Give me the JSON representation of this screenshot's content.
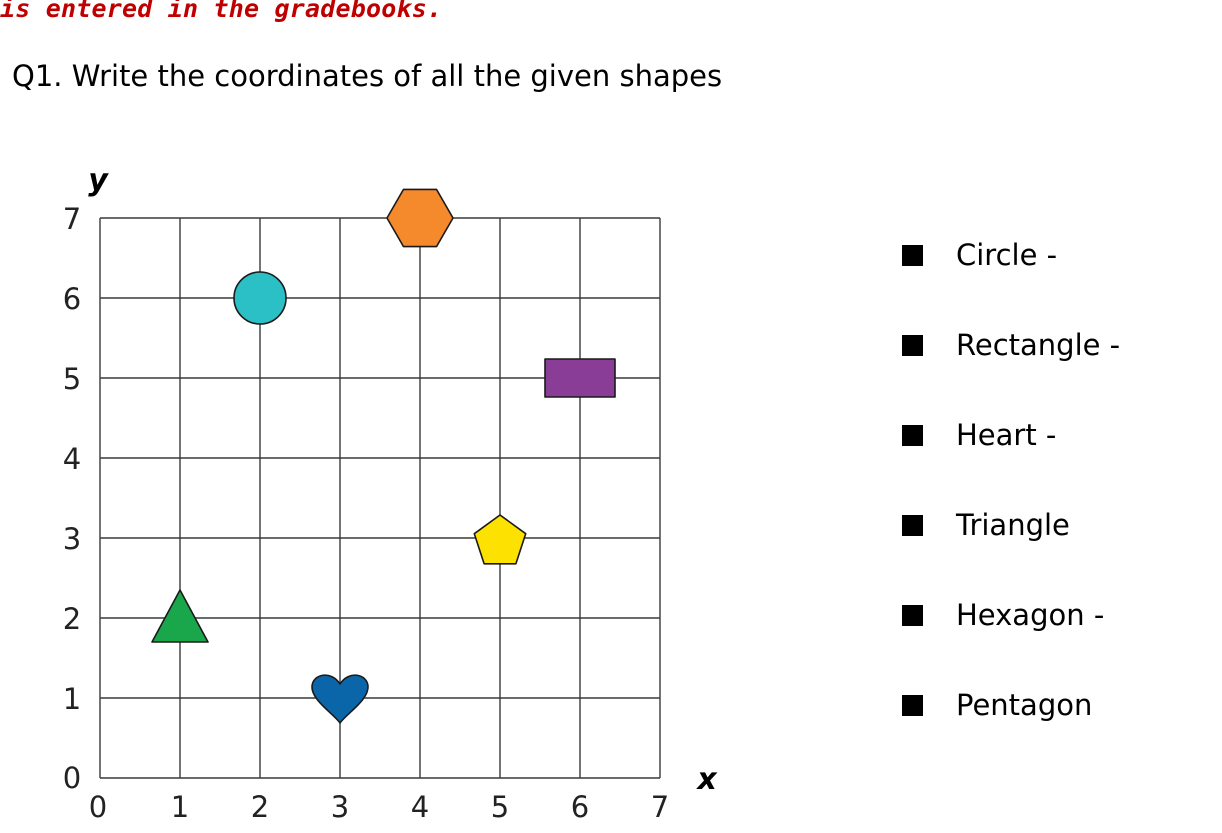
{
  "header": {
    "banner": "is entered in the gradebooks.",
    "question": "Q1. Write the coordinates of all the given shapes"
  },
  "grid": {
    "x_label": "x",
    "y_label": "y",
    "x_ticks": [
      "0",
      "1",
      "2",
      "3",
      "4",
      "5",
      "6",
      "7"
    ],
    "y_ticks": [
      "0",
      "1",
      "2",
      "3",
      "4",
      "5",
      "6",
      "7"
    ],
    "shapes": [
      {
        "name": "circle",
        "x": 2,
        "y": 6,
        "color": "#2bbfc6"
      },
      {
        "name": "hexagon",
        "x": 4,
        "y": 7,
        "color": "#f58a2c"
      },
      {
        "name": "rectangle",
        "x": 6,
        "y": 5,
        "color": "#8a3d97"
      },
      {
        "name": "pentagon",
        "x": 5,
        "y": 3,
        "color": "#fde100"
      },
      {
        "name": "triangle",
        "x": 1,
        "y": 2,
        "color": "#1aa64a"
      },
      {
        "name": "heart",
        "x": 3,
        "y": 1,
        "color": "#0a66a8"
      }
    ]
  },
  "legend": {
    "items": [
      {
        "label": "Circle -"
      },
      {
        "label": "Rectangle -"
      },
      {
        "label": "Heart -"
      },
      {
        "label": "Triangle"
      },
      {
        "label": "Hexagon -"
      },
      {
        "label": "Pentagon"
      }
    ]
  }
}
